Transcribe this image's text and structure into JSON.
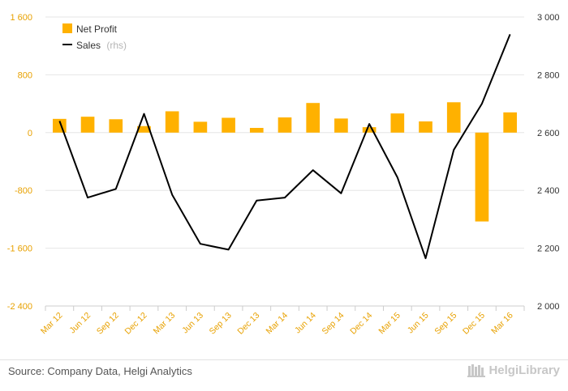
{
  "chart_data": {
    "type": "bar",
    "categories": [
      "Mar 12",
      "Jun 12",
      "Sep 12",
      "Dec 12",
      "Mar 13",
      "Jun 13",
      "Sep 13",
      "Dec 13",
      "Mar 14",
      "Jun 14",
      "Sep 14",
      "Dec 14",
      "Mar 15",
      "Jun 15",
      "Sep 15",
      "Dec 15",
      "Mar 16"
    ],
    "series": [
      {
        "name": "Net Profit",
        "kind": "bar",
        "axis": "left",
        "color": "#ffb100",
        "values": [
          190,
          220,
          185,
          90,
          295,
          150,
          205,
          65,
          210,
          410,
          195,
          75,
          265,
          155,
          420,
          -1230,
          280
        ]
      },
      {
        "name": "Sales",
        "name_suffix": "(rhs)",
        "kind": "line",
        "axis": "right",
        "color": "#000000",
        "values": [
          2640,
          2375,
          2405,
          2665,
          2385,
          2215,
          2195,
          2365,
          2375,
          2470,
          2390,
          2630,
          2445,
          2165,
          2540,
          2700,
          2940
        ]
      }
    ],
    "y_left": {
      "ylim": [
        -2400,
        1600
      ],
      "ticks": [
        -2400,
        -1600,
        -800,
        0,
        800,
        1600
      ],
      "tick_labels": [
        "-2 400",
        "-1 600",
        "-800",
        "0",
        "800",
        "1 600"
      ]
    },
    "y_right": {
      "ylim": [
        2000,
        3000
      ],
      "ticks": [
        2000,
        2200,
        2400,
        2600,
        2800,
        3000
      ],
      "tick_labels": [
        "2 000",
        "2 200",
        "2 400",
        "2 600",
        "2 800",
        "3 000"
      ]
    },
    "grid": true,
    "legend_position": "top-left"
  },
  "legend": {
    "net_profit": "Net Profit",
    "sales": "Sales",
    "sales_suffix": "(rhs)"
  },
  "footer": {
    "source": "Source: Company Data, Helgi Analytics",
    "brand": "HelgiLibrary"
  },
  "colors": {
    "bar": "#ffb100",
    "line": "#000000",
    "left_axis_text": "#e8a100",
    "grid": "#e6e6e6"
  }
}
